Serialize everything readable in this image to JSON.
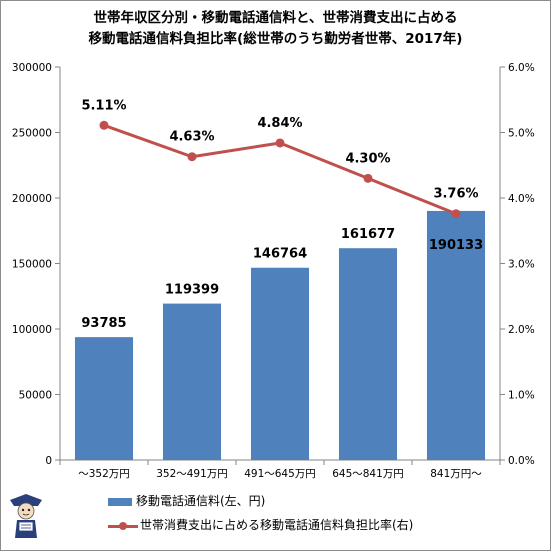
{
  "title_lines": [
    "世帯年収区分別・移動電話通信料と、世帯消費支出に占める",
    "移動電話通信料負担比率(総世帯のうち勤労者世帯、2017年)"
  ],
  "chart_data": {
    "type": "bar+line",
    "categories": [
      "～352万円",
      "352～491万円",
      "491～645万円",
      "645～841万円",
      "841万円～"
    ],
    "series": [
      {
        "name": "移動電話通信料(左、円)",
        "type": "bar",
        "axis": "left",
        "values": [
          93785,
          119399,
          146764,
          161677,
          190133
        ],
        "labels": [
          "93785",
          "119399",
          "146764",
          "161677",
          "190133"
        ],
        "color": "#4f81bd"
      },
      {
        "name": "世帯消費支出に占める移動電話通信料負担比率(右)",
        "type": "line",
        "axis": "right",
        "values": [
          5.11,
          4.63,
          4.84,
          4.3,
          3.76
        ],
        "labels": [
          "5.11%",
          "4.63%",
          "4.84%",
          "4.30%",
          "3.76%"
        ],
        "color": "#c0504d"
      }
    ],
    "left_axis": {
      "ylim": [
        0,
        300000
      ],
      "ticks": [
        "0",
        "50000",
        "100000",
        "150000",
        "200000",
        "250000",
        "300000"
      ]
    },
    "right_axis": {
      "ylim": [
        0,
        6
      ],
      "ticks": [
        "0.0%",
        "1.0%",
        "2.0%",
        "3.0%",
        "4.0%",
        "5.0%",
        "6.0%"
      ]
    },
    "grid": false,
    "legend_position": "bottom"
  }
}
